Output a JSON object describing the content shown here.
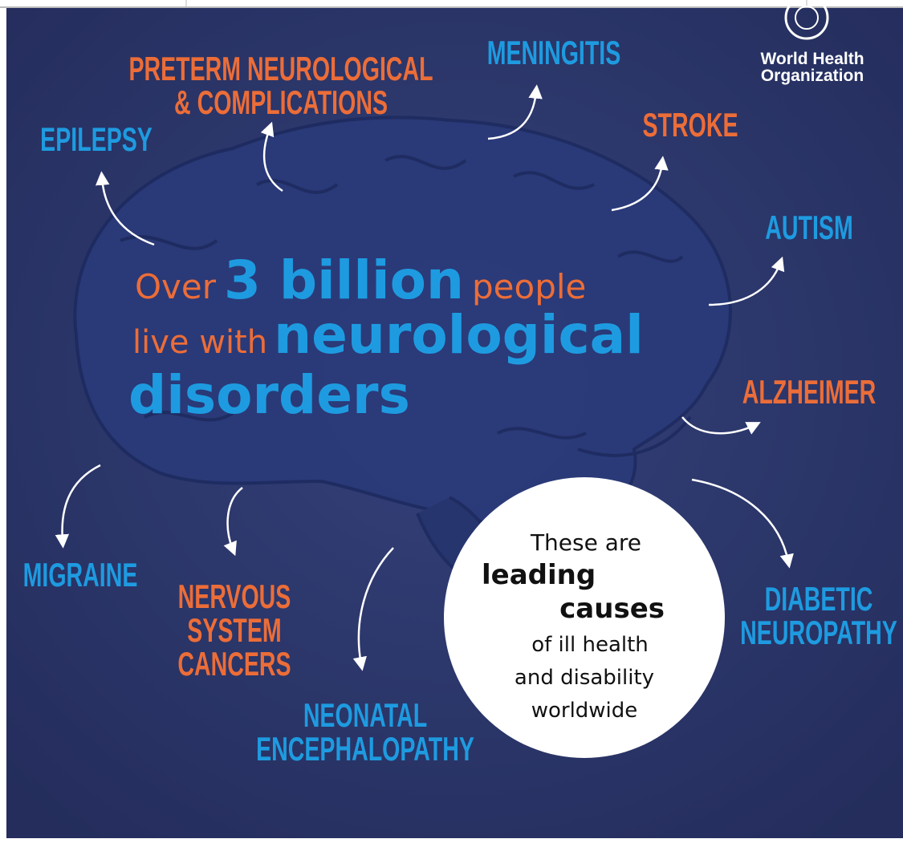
{
  "logo": {
    "lines": [
      "World Health",
      "Organization"
    ]
  },
  "headline": {
    "line1": [
      "Over",
      "3 billion",
      "people"
    ],
    "line2": [
      "live with",
      "neurological"
    ],
    "line3": [
      "disorders"
    ]
  },
  "conditions": [
    {
      "lines": [
        "PRETERM NEUROLOGICAL",
        "& COMPLICATIONS"
      ],
      "color": "#ec6d38"
    },
    {
      "lines": [
        "MENINGITIS"
      ],
      "color": "#1e9be0"
    },
    {
      "lines": [
        "EPILEPSY"
      ],
      "color": "#1e9be0"
    },
    {
      "lines": [
        "STROKE"
      ],
      "color": "#ec6d38"
    },
    {
      "lines": [
        "AUTISM"
      ],
      "color": "#1e9be0"
    },
    {
      "lines": [
        "ALZHEIMER"
      ],
      "color": "#ec6d38"
    },
    {
      "lines": [
        "MIGRAINE"
      ],
      "color": "#1e9be0"
    },
    {
      "lines": [
        "NERVOUS",
        "SYSTEM",
        "CANCERS"
      ],
      "color": "#ec6d38"
    },
    {
      "lines": [
        "NEONATAL",
        "ENCEPHALOPATHY"
      ],
      "color": "#1e9be0"
    },
    {
      "lines": [
        "DIABETIC",
        "NEUROPATHY"
      ],
      "color": "#1e9be0"
    }
  ],
  "callout": {
    "lines": [
      "These are",
      "leading",
      "causes",
      "of ill health",
      "and disability",
      "worldwide"
    ]
  }
}
